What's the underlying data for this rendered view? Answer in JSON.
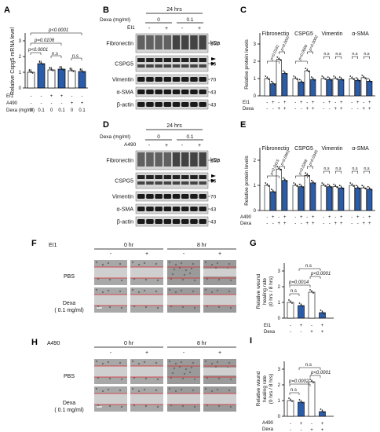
{
  "panels": {
    "A": "A",
    "B": "B",
    "C": "C",
    "D": "D",
    "E": "E",
    "F": "F",
    "G": "G",
    "H": "H",
    "I": "I"
  },
  "colors": {
    "white": "#ffffff",
    "blue": "#2a5caa",
    "wound_line": "#d9232a"
  },
  "A": {
    "ylabel": "Relative Cspg5 mRNA level",
    "yticks": [
      "0",
      "1",
      "2",
      "3"
    ],
    "row1_label": "EI1",
    "row2_label": "A490",
    "row3_label": "Dexa (mg/ml)",
    "row1": [
      "-",
      "-",
      "+",
      "+",
      "-",
      "-"
    ],
    "row2": [
      "-",
      "-",
      "-",
      "-",
      "+",
      "+"
    ],
    "row3": [
      "0",
      "0.1",
      "0",
      "0.1",
      "0",
      "0.1"
    ],
    "p1": "p<0.0001",
    "p2": "p=0.0106",
    "p3": "p<0.0001",
    "ns1": "n.s",
    "ns2": "n.s"
  },
  "B": {
    "time": "24 hrs",
    "dexa_label": "Dexa (mg/ml)",
    "dexa_0": "0",
    "dexa_1": "0.1",
    "treat_label": "EI1",
    "treat_signs": [
      "-",
      "+",
      "-",
      "+"
    ],
    "kda": "kDa",
    "proteins": [
      "Fibronectin",
      "CSPG5",
      "Vimentin",
      "α-SMA",
      "β-actin"
    ],
    "markers": [
      "262",
      "95",
      "70",
      "43",
      "43"
    ]
  },
  "D": {
    "time": "24 hrs",
    "dexa_label": "Dexa (mg/ml)",
    "dexa_0": "0",
    "dexa_1": "0.1",
    "treat_label": "A490",
    "treat_signs": [
      "-",
      "+",
      "-",
      "+"
    ],
    "kda": "kDa",
    "proteins": [
      "Fibronectin",
      "CSPG5",
      "Vimentin",
      "α-SMA",
      "β-actin"
    ],
    "markers": [
      "262",
      "95",
      "70",
      "43",
      "43"
    ]
  },
  "C": {
    "ylabel": "Relative protein levels",
    "yticks": [
      "0",
      "1",
      "2",
      "3"
    ],
    "groups": [
      "Fibronectin",
      "CSPG5",
      "Vimentin",
      "α-SMA"
    ],
    "row1_label": "EI1",
    "row2_label": "Dexa",
    "row1": [
      "-",
      "+",
      "-",
      "+"
    ],
    "row2": [
      "-",
      "-",
      "+",
      "+"
    ],
    "pvals": [
      "p=0.0181",
      "p=0.0037",
      "p=0.0090",
      "p=0.0002"
    ],
    "ns": "n.s"
  },
  "E": {
    "ylabel": "Relative protein levels",
    "yticks": [
      "0",
      "1",
      "2"
    ],
    "groups": [
      "Fibronectin",
      "CSPG5",
      "Vimentin",
      "α-SMA"
    ],
    "row1_label": "A490",
    "row2_label": "Dexa",
    "row1": [
      "-",
      "+",
      "-",
      "+"
    ],
    "row2": [
      "-",
      "-",
      "+",
      "+"
    ],
    "pvals": [
      "p=0.0415",
      "p=0.0063",
      "p=0.0268",
      "p=0.0345"
    ],
    "ns": "n.s"
  },
  "F": {
    "treat_label": "EI1",
    "time0": "0 hr",
    "time1": "8 hr",
    "signs": [
      "-",
      "+",
      "-",
      "+"
    ],
    "row1": "PBS",
    "row2_a": "Dexa",
    "row2_b": "( 0.1 mg/ml)"
  },
  "H": {
    "treat_label": "A490",
    "time0": "0 hr",
    "time1": "8 hr",
    "signs": [
      "-",
      "+",
      "-",
      "+"
    ],
    "row1": "PBS",
    "row2_a": "Dexa",
    "row2_b": "( 0.1 mg/ml)"
  },
  "G": {
    "ylabel_a": "Relative wound",
    "ylabel_b": "healing rate",
    "ylabel_c": "(0 hrs / 8 hrs)",
    "yticks": [
      "0",
      "1",
      "2",
      "3"
    ],
    "row1_label": "EI1",
    "row2_label": "Dexa",
    "row1": [
      "-",
      "+",
      "-",
      "+"
    ],
    "row2": [
      "-",
      "-",
      "+",
      "+"
    ],
    "p1": "p=0.0014",
    "p2": "p<0.0001",
    "ns1": "n.s",
    "ns2": "n.s"
  },
  "I": {
    "ylabel_a": "Relative wound",
    "ylabel_b": "healing rate",
    "ylabel_c": "(0 hrs / 8 hrs)",
    "yticks": [
      "0",
      "1",
      "2",
      "3"
    ],
    "row1_label": "A490",
    "row2_label": "Dexa",
    "row1": [
      "-",
      "+",
      "-",
      "+"
    ],
    "row2": [
      "-",
      "-",
      "+",
      "+"
    ],
    "p1": "p=0.0002",
    "p2": "p<0.0001",
    "ns1": "n.s",
    "ns2": "n.s"
  },
  "chart_data": [
    {
      "panel": "A",
      "type": "bar",
      "ylim": [
        0,
        3
      ],
      "categories": [
        "1",
        "2",
        "3",
        "4",
        "5",
        "6"
      ],
      "values": [
        1.0,
        1.55,
        1.15,
        1.2,
        1.1,
        1.05
      ],
      "colors": [
        "white",
        "blue",
        "white",
        "blue",
        "white",
        "blue"
      ]
    },
    {
      "panel": "C",
      "type": "bar",
      "ylim": [
        0,
        3
      ],
      "categories": [
        "Fibronectin",
        "CSPG5",
        "Vimentin",
        "α-SMA"
      ],
      "values": [
        [
          1.0,
          0.7,
          2.1,
          1.3
        ],
        [
          1.0,
          0.8,
          1.45,
          0.95
        ],
        [
          1.0,
          0.95,
          1.0,
          0.95
        ],
        [
          1.0,
          0.9,
          1.05,
          0.85
        ]
      ]
    },
    {
      "panel": "E",
      "type": "bar",
      "ylim": [
        0,
        2
      ],
      "categories": [
        "Fibronectin",
        "CSPG5",
        "Vimentin",
        "α-SMA"
      ],
      "values": [
        [
          1.0,
          0.75,
          1.65,
          1.2
        ],
        [
          1.0,
          0.95,
          1.4,
          1.1
        ],
        [
          1.0,
          0.95,
          0.95,
          0.9
        ],
        [
          1.0,
          0.9,
          0.9,
          0.85
        ]
      ]
    },
    {
      "panel": "G",
      "type": "bar",
      "ylim": [
        0,
        3
      ],
      "categories": [
        "1",
        "2",
        "3",
        "4"
      ],
      "values": [
        1.0,
        0.8,
        1.65,
        0.35
      ]
    },
    {
      "panel": "I",
      "type": "bar",
      "ylim": [
        0,
        3
      ],
      "categories": [
        "1",
        "2",
        "3",
        "4"
      ],
      "values": [
        1.0,
        0.9,
        2.2,
        0.3
      ]
    }
  ]
}
